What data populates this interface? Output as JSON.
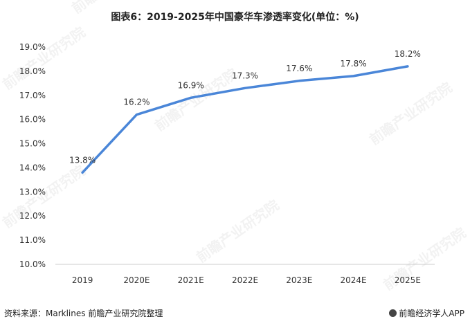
{
  "title": "图表6：2019-2025年中国豪华车渗透率变化(单位：%)",
  "footer": {
    "source": "资料来源：Marklines 前瞻产业研究院整理",
    "brand": "前瞻经济学人APP"
  },
  "watermark": "前瞻产业研究院",
  "colors": {
    "line": "#4a86d8",
    "axis": "#cccccc"
  },
  "chart_data": {
    "type": "line",
    "categories": [
      "2019",
      "2020E",
      "2021E",
      "2022E",
      "2023E",
      "2024E",
      "2025E"
    ],
    "series": [
      {
        "values": [
          13.8,
          16.2,
          16.9,
          17.3,
          17.6,
          17.8,
          18.2
        ],
        "labels": [
          "13.8%",
          "16.2%",
          "16.9%",
          "17.3%",
          "17.6%",
          "17.8%",
          "18.2%"
        ]
      }
    ],
    "yticks": [
      "10.0%",
      "11.0%",
      "12.0%",
      "13.0%",
      "14.0%",
      "15.0%",
      "16.0%",
      "17.0%",
      "18.0%",
      "19.0%"
    ],
    "ylim": [
      10,
      19
    ],
    "xlabel": "",
    "ylabel": "",
    "grid": false,
    "legend": "none"
  }
}
